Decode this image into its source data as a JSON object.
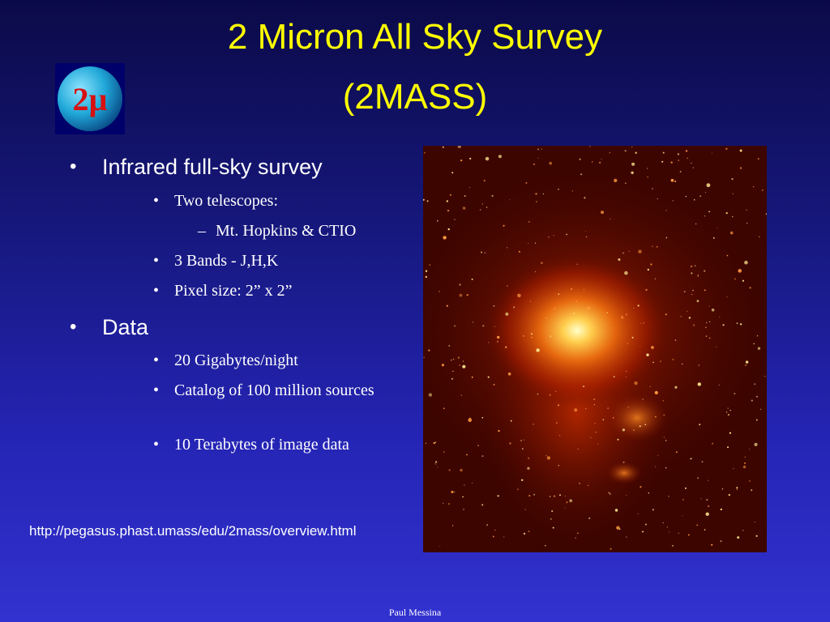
{
  "slide": {
    "title_line1": "2 Micron All Sky Survey",
    "title_line2": "(2MASS)",
    "logo": {
      "text": "2µ"
    },
    "bullets": [
      {
        "text": "Infrared full-sky survey",
        "children": [
          {
            "text": "Two telescopes:",
            "children": [
              {
                "text": "Mt. Hopkins & CTIO"
              }
            ]
          },
          {
            "text": "3 Bands - J,H,K"
          },
          {
            "text": "Pixel size: 2” x 2”"
          }
        ]
      },
      {
        "text": "Data",
        "children": [
          {
            "text": "20 Gigabytes/night"
          },
          {
            "text": "Catalog of 100 million sources"
          },
          {
            "text": "10 Terabytes of image data"
          }
        ]
      }
    ],
    "link_text": "http://pegasus.phast.umass/edu/2mass/overview.html",
    "footer": "Paul Messina",
    "colors": {
      "title": "#ffff00",
      "text": "#ffffff",
      "background_top": "#0b0a48",
      "background_bottom": "#3232d0"
    }
  }
}
